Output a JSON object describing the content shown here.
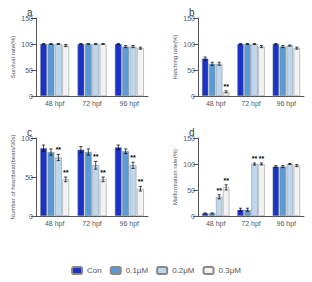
{
  "chart_data": [
    {
      "type": "bar",
      "title": "a",
      "ylabel": "Survival rate(%)",
      "categories": [
        "48 hpf",
        "72 hpf",
        "96 hpf"
      ],
      "series": [
        {
          "name": "Con",
          "color": "#1a32c8",
          "values": [
            100,
            100,
            100
          ],
          "errors": [
            1,
            1,
            1
          ]
        },
        {
          "name": "0.1μM",
          "color": "#5b9bd5",
          "values": [
            100,
            100,
            95
          ],
          "errors": [
            1,
            1,
            2
          ]
        },
        {
          "name": "0.2μM",
          "color": "#bdd7ee",
          "values": [
            100,
            100,
            95
          ],
          "errors": [
            1,
            1,
            2
          ]
        },
        {
          "name": "0.3μM",
          "color": "#f2f2f2",
          "values": [
            97,
            100,
            92
          ],
          "errors": [
            2,
            1,
            2
          ]
        }
      ],
      "ylim": [
        0,
        150
      ],
      "yticks": [
        0,
        50,
        100,
        150
      ],
      "grid": false,
      "legend": "bottom",
      "annotations": []
    },
    {
      "type": "bar",
      "title": "b",
      "ylabel": "Hatching rate(%)",
      "categories": [
        "48 hpf",
        "72 hpf",
        "96 hpf"
      ],
      "series": [
        {
          "name": "Con",
          "color": "#1a32c8",
          "values": [
            72,
            100,
            100
          ],
          "errors": [
            3,
            1,
            1
          ]
        },
        {
          "name": "0.1μM",
          "color": "#5b9bd5",
          "values": [
            62,
            100,
            95
          ],
          "errors": [
            3,
            1,
            2
          ]
        },
        {
          "name": "0.2μM",
          "color": "#bdd7ee",
          "values": [
            62,
            100,
            97
          ],
          "errors": [
            3,
            1,
            1
          ]
        },
        {
          "name": "0.3μM",
          "color": "#f2f2f2",
          "values": [
            8,
            95,
            92
          ],
          "errors": [
            2,
            2,
            2
          ]
        }
      ],
      "ylim": [
        0,
        150
      ],
      "yticks": [
        0,
        50,
        100,
        150
      ],
      "grid": false,
      "legend": "bottom",
      "annotations": [
        {
          "text": "**",
          "category": "48 hpf",
          "series": "0.3μM"
        }
      ]
    },
    {
      "type": "bar",
      "title": "c",
      "ylabel": "Number of heartbeat(beats/30s)",
      "categories": [
        "48 hpf",
        "72 hpf",
        "96 hpf"
      ],
      "series": [
        {
          "name": "Con",
          "color": "#1a32c8",
          "values": [
            87,
            85,
            88
          ],
          "errors": [
            4,
            4,
            3
          ]
        },
        {
          "name": "0.1μM",
          "color": "#5b9bd5",
          "values": [
            82,
            82,
            83
          ],
          "errors": [
            4,
            4,
            3
          ]
        },
        {
          "name": "0.2μM",
          "color": "#bdd7ee",
          "values": [
            75,
            65,
            65
          ],
          "errors": [
            4,
            5,
            4
          ]
        },
        {
          "name": "0.3μM",
          "color": "#f2f2f2",
          "values": [
            47,
            47,
            35
          ],
          "errors": [
            3,
            3,
            3
          ]
        }
      ],
      "ylim": [
        0,
        100
      ],
      "yticks": [
        0,
        50,
        100
      ],
      "grid": false,
      "legend": "bottom",
      "annotations": [
        {
          "text": "**",
          "category": "48 hpf",
          "series": "0.2μM"
        },
        {
          "text": "**",
          "category": "48 hpf",
          "series": "0.3μM"
        },
        {
          "text": "**",
          "category": "72 hpf",
          "series": "0.2μM"
        },
        {
          "text": "**",
          "category": "72 hpf",
          "series": "0.3μM"
        },
        {
          "text": "**",
          "category": "96 hpf",
          "series": "0.2μM"
        },
        {
          "text": "**",
          "category": "96 hpf",
          "series": "0.3μM"
        }
      ]
    },
    {
      "type": "bar",
      "title": "d",
      "ylabel": "Malformation rate(%)",
      "categories": [
        "48 hpf",
        "72 hpf",
        "96 hpf"
      ],
      "series": [
        {
          "name": "Con",
          "color": "#1a32c8",
          "values": [
            5,
            12,
            95
          ],
          "errors": [
            1,
            3,
            2
          ]
        },
        {
          "name": "0.1μM",
          "color": "#5b9bd5",
          "values": [
            5,
            12,
            95
          ],
          "errors": [
            1,
            3,
            2
          ]
        },
        {
          "name": "0.2μM",
          "color": "#bdd7ee",
          "values": [
            37,
            100,
            100
          ],
          "errors": [
            4,
            2,
            1
          ]
        },
        {
          "name": "0.3μM",
          "color": "#f2f2f2",
          "values": [
            55,
            100,
            97
          ],
          "errors": [
            5,
            2,
            2
          ]
        }
      ],
      "ylim": [
        0,
        150
      ],
      "yticks": [
        0,
        50,
        100,
        150
      ],
      "grid": false,
      "legend": "bottom",
      "annotations": [
        {
          "text": "**",
          "category": "48 hpf",
          "series": "0.2μM"
        },
        {
          "text": "**",
          "category": "48 hpf",
          "series": "0.3μM"
        },
        {
          "text": "**",
          "category": "72 hpf",
          "series": "0.2μM"
        },
        {
          "text": "**",
          "category": "72 hpf",
          "series": "0.3μM"
        }
      ]
    }
  ]
}
